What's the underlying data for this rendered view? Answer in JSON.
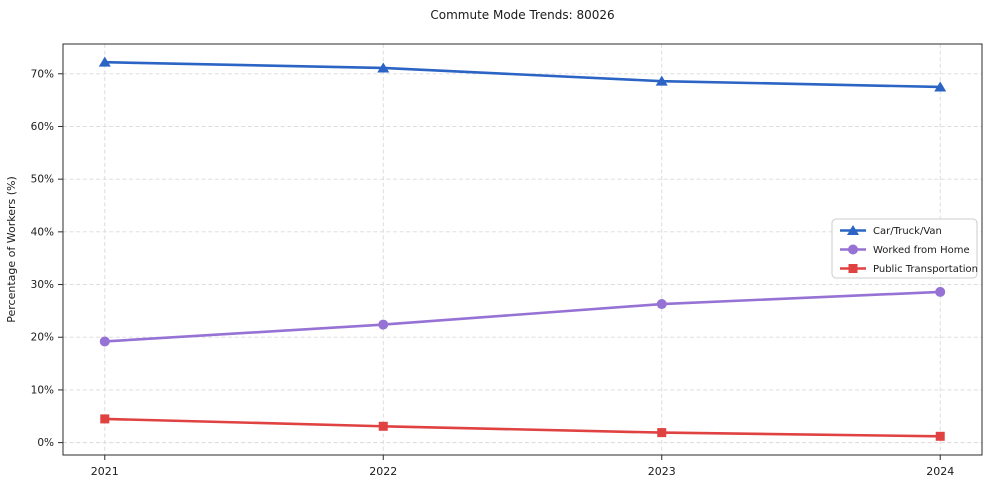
{
  "chart_data": {
    "type": "line",
    "title": "Commute Mode Trends: 80026",
    "xlabel": "",
    "ylabel": "Percentage of Workers (%)",
    "x": [
      2021,
      2022,
      2023,
      2024
    ],
    "xtick_labels": [
      "2021",
      "2022",
      "2023",
      "2024"
    ],
    "yticks": [
      0,
      10,
      20,
      30,
      40,
      50,
      60,
      70
    ],
    "ytick_labels": [
      "0%",
      "10%",
      "20%",
      "30%",
      "40%",
      "50%",
      "60%",
      "70%"
    ],
    "xlim": [
      2020.85,
      2024.15
    ],
    "ylim": [
      -2.35,
      75.65
    ],
    "grid": true,
    "grid_style": "dashed",
    "legend_position": "center-right",
    "series": [
      {
        "name": "Car/Truck/Van",
        "marker": "triangle",
        "color": "#2b64c4",
        "values": [
          72.2,
          71.1,
          68.6,
          67.5
        ]
      },
      {
        "name": "Worked from Home",
        "marker": "circle",
        "color": "#9672d4",
        "values": [
          19.2,
          22.4,
          26.3,
          28.6
        ]
      },
      {
        "name": "Public Transportation",
        "marker": "square",
        "color": "#e04141",
        "values": [
          4.5,
          3.1,
          1.9,
          1.2
        ]
      }
    ],
    "colors": {
      "grid": "#d9d9d9",
      "spine": "#2b2b2b",
      "text": "#1a1a1a",
      "legend_border": "#cccccc",
      "background": "#ffffff"
    }
  }
}
